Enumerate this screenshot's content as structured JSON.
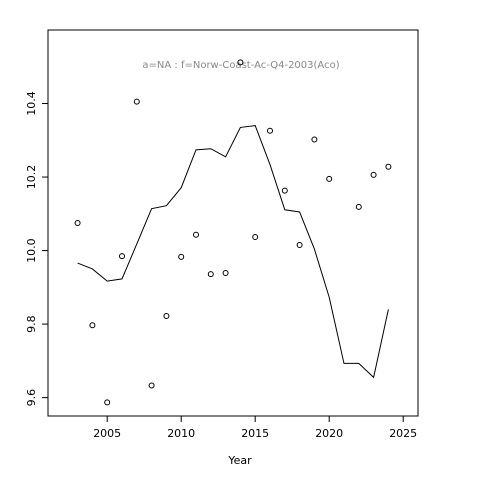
{
  "chart_data": {
    "type": "line",
    "title": "a=NA  :  f=Norw-Coast-Ac-Q4-2003(Aco)",
    "x_label": "Year",
    "x": [
      2003,
      2004,
      2005,
      2006,
      2007,
      2008,
      2009,
      2010,
      2011,
      2012,
      2013,
      2014,
      2015,
      2016,
      2017,
      2018,
      2019,
      2020,
      2021,
      2022,
      2023,
      2024
    ],
    "series": [
      {
        "mode": "points",
        "color": "#000000",
        "values": [
          10.075,
          9.797,
          9.587,
          9.985,
          10.405,
          9.633,
          9.822,
          9.983,
          10.043,
          9.936,
          9.939,
          10.512,
          10.037,
          10.326,
          10.163,
          10.015,
          10.302,
          10.195,
          null,
          10.119,
          10.206,
          10.228
        ]
      },
      {
        "mode": "line",
        "color": "#000000",
        "values": [
          9.966,
          9.95,
          9.917,
          9.923,
          10.018,
          10.114,
          10.122,
          10.171,
          10.274,
          10.277,
          10.255,
          10.335,
          10.34,
          10.234,
          10.111,
          10.105,
          10.004,
          9.873,
          9.693,
          9.693,
          9.655,
          9.84
        ]
      }
    ],
    "xlim": [
      2001,
      2026
    ],
    "xticks": [
      2005,
      2010,
      2015,
      2020,
      2025
    ],
    "ylim": [
      9.55,
      10.6
    ],
    "yticks": [
      9.6,
      9.8,
      {
        "value": 10.0,
        "label": "10.0"
      },
      10.2,
      10.4
    ],
    "grid": false
  }
}
